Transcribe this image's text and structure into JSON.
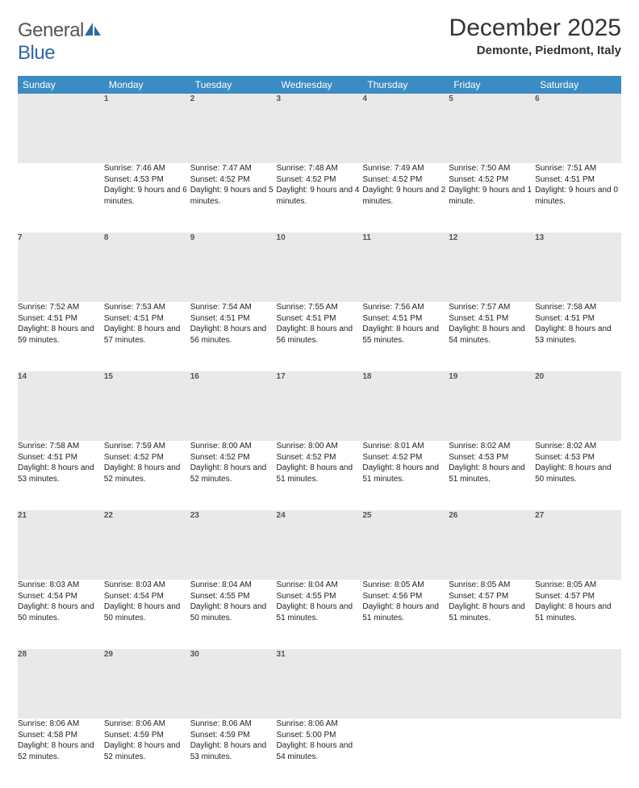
{
  "logo": {
    "part1": "General",
    "part2": "Blue"
  },
  "title": "December 2025",
  "location": "Demonte, Piedmont, Italy",
  "colors": {
    "header_bg": "#3b8bc4",
    "row_border": "#2d6aa3",
    "daynum_bg": "#e9e9e9",
    "text": "#222222"
  },
  "weekdays": [
    "Sunday",
    "Monday",
    "Tuesday",
    "Wednesday",
    "Thursday",
    "Friday",
    "Saturday"
  ],
  "grid": [
    [
      null,
      {
        "n": "1",
        "sr": "7:46 AM",
        "ss": "4:53 PM",
        "dl": "9 hours and 6 minutes."
      },
      {
        "n": "2",
        "sr": "7:47 AM",
        "ss": "4:52 PM",
        "dl": "9 hours and 5 minutes."
      },
      {
        "n": "3",
        "sr": "7:48 AM",
        "ss": "4:52 PM",
        "dl": "9 hours and 4 minutes."
      },
      {
        "n": "4",
        "sr": "7:49 AM",
        "ss": "4:52 PM",
        "dl": "9 hours and 2 minutes."
      },
      {
        "n": "5",
        "sr": "7:50 AM",
        "ss": "4:52 PM",
        "dl": "9 hours and 1 minute."
      },
      {
        "n": "6",
        "sr": "7:51 AM",
        "ss": "4:51 PM",
        "dl": "9 hours and 0 minutes."
      }
    ],
    [
      {
        "n": "7",
        "sr": "7:52 AM",
        "ss": "4:51 PM",
        "dl": "8 hours and 59 minutes."
      },
      {
        "n": "8",
        "sr": "7:53 AM",
        "ss": "4:51 PM",
        "dl": "8 hours and 57 minutes."
      },
      {
        "n": "9",
        "sr": "7:54 AM",
        "ss": "4:51 PM",
        "dl": "8 hours and 56 minutes."
      },
      {
        "n": "10",
        "sr": "7:55 AM",
        "ss": "4:51 PM",
        "dl": "8 hours and 56 minutes."
      },
      {
        "n": "11",
        "sr": "7:56 AM",
        "ss": "4:51 PM",
        "dl": "8 hours and 55 minutes."
      },
      {
        "n": "12",
        "sr": "7:57 AM",
        "ss": "4:51 PM",
        "dl": "8 hours and 54 minutes."
      },
      {
        "n": "13",
        "sr": "7:58 AM",
        "ss": "4:51 PM",
        "dl": "8 hours and 53 minutes."
      }
    ],
    [
      {
        "n": "14",
        "sr": "7:58 AM",
        "ss": "4:51 PM",
        "dl": "8 hours and 53 minutes."
      },
      {
        "n": "15",
        "sr": "7:59 AM",
        "ss": "4:52 PM",
        "dl": "8 hours and 52 minutes."
      },
      {
        "n": "16",
        "sr": "8:00 AM",
        "ss": "4:52 PM",
        "dl": "8 hours and 52 minutes."
      },
      {
        "n": "17",
        "sr": "8:00 AM",
        "ss": "4:52 PM",
        "dl": "8 hours and 51 minutes."
      },
      {
        "n": "18",
        "sr": "8:01 AM",
        "ss": "4:52 PM",
        "dl": "8 hours and 51 minutes."
      },
      {
        "n": "19",
        "sr": "8:02 AM",
        "ss": "4:53 PM",
        "dl": "8 hours and 51 minutes."
      },
      {
        "n": "20",
        "sr": "8:02 AM",
        "ss": "4:53 PM",
        "dl": "8 hours and 50 minutes."
      }
    ],
    [
      {
        "n": "21",
        "sr": "8:03 AM",
        "ss": "4:54 PM",
        "dl": "8 hours and 50 minutes."
      },
      {
        "n": "22",
        "sr": "8:03 AM",
        "ss": "4:54 PM",
        "dl": "8 hours and 50 minutes."
      },
      {
        "n": "23",
        "sr": "8:04 AM",
        "ss": "4:55 PM",
        "dl": "8 hours and 50 minutes."
      },
      {
        "n": "24",
        "sr": "8:04 AM",
        "ss": "4:55 PM",
        "dl": "8 hours and 51 minutes."
      },
      {
        "n": "25",
        "sr": "8:05 AM",
        "ss": "4:56 PM",
        "dl": "8 hours and 51 minutes."
      },
      {
        "n": "26",
        "sr": "8:05 AM",
        "ss": "4:57 PM",
        "dl": "8 hours and 51 minutes."
      },
      {
        "n": "27",
        "sr": "8:05 AM",
        "ss": "4:57 PM",
        "dl": "8 hours and 51 minutes."
      }
    ],
    [
      {
        "n": "28",
        "sr": "8:06 AM",
        "ss": "4:58 PM",
        "dl": "8 hours and 52 minutes."
      },
      {
        "n": "29",
        "sr": "8:06 AM",
        "ss": "4:59 PM",
        "dl": "8 hours and 52 minutes."
      },
      {
        "n": "30",
        "sr": "8:06 AM",
        "ss": "4:59 PM",
        "dl": "8 hours and 53 minutes."
      },
      {
        "n": "31",
        "sr": "8:06 AM",
        "ss": "5:00 PM",
        "dl": "8 hours and 54 minutes."
      },
      null,
      null,
      null
    ]
  ],
  "labels": {
    "sunrise": "Sunrise:",
    "sunset": "Sunset:",
    "daylight": "Daylight:"
  }
}
